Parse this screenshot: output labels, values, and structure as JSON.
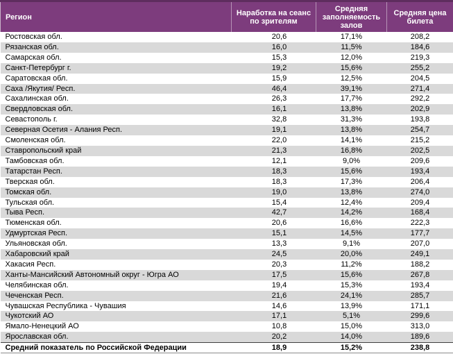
{
  "colors": {
    "header_bg": "#7d3c7d",
    "header_top_border": "#5e2d5e",
    "row_alt_bg": "#d9d9d9",
    "header_text": "#ffffff",
    "summary_border": "#404040"
  },
  "table": {
    "columns": [
      "Регион",
      "Наработка на сеанс по зрителям",
      "Средняя заполняемость залов",
      "Средняя цена билета"
    ],
    "rows": [
      [
        "Ростовская обл.",
        "20,6",
        "17,1%",
        "208,2"
      ],
      [
        "Рязанская обл.",
        "16,0",
        "11,5%",
        "184,6"
      ],
      [
        "Самарская обл.",
        "15,3",
        "12,0%",
        "219,3"
      ],
      [
        "Санкт-Петербург г.",
        "19,2",
        "15,6%",
        "255,2"
      ],
      [
        "Саратовская обл.",
        "15,9",
        "12,5%",
        "204,5"
      ],
      [
        "Саха /Якутия/ Респ.",
        "46,4",
        "39,1%",
        "271,4"
      ],
      [
        "Сахалинская обл.",
        "26,3",
        "17,7%",
        "292,2"
      ],
      [
        "Свердловская обл.",
        "16,1",
        "13,8%",
        "202,9"
      ],
      [
        "Севастополь г.",
        "32,8",
        "31,3%",
        "193,8"
      ],
      [
        "Северная Осетия - Алания Респ.",
        "19,1",
        "13,8%",
        "254,7"
      ],
      [
        "Смоленская обл.",
        "22,0",
        "14,1%",
        "215,2"
      ],
      [
        "Ставропольский край",
        "21,3",
        "16,8%",
        "202,5"
      ],
      [
        "Тамбовская обл.",
        "12,1",
        "9,0%",
        "209,6"
      ],
      [
        "Татарстан Респ.",
        "18,3",
        "15,6%",
        "193,4"
      ],
      [
        "Тверская обл.",
        "18,3",
        "17,3%",
        "206,4"
      ],
      [
        "Томская обл.",
        "19,0",
        "13,8%",
        "274,0"
      ],
      [
        "Тульская обл.",
        "15,4",
        "12,4%",
        "209,4"
      ],
      [
        "Тыва Респ.",
        "42,7",
        "14,2%",
        "168,4"
      ],
      [
        "Тюменская обл.",
        "20,6",
        "16,6%",
        "222,3"
      ],
      [
        "Удмуртская Респ.",
        "15,1",
        "14,5%",
        "177,7"
      ],
      [
        "Ульяновская обл.",
        "13,3",
        "9,1%",
        "207,0"
      ],
      [
        "Хабаровский край",
        "24,5",
        "20,0%",
        "249,1"
      ],
      [
        "Хакасия Респ.",
        "20,3",
        "11,2%",
        "188,2"
      ],
      [
        "Ханты-Мансийский Автономный округ - Югра АО",
        "17,5",
        "15,6%",
        "267,8"
      ],
      [
        "Челябинская обл.",
        "19,4",
        "15,3%",
        "193,4"
      ],
      [
        "Чеченская Респ.",
        "21,6",
        "24,1%",
        "285,7"
      ],
      [
        "Чувашская Республика - Чувашия",
        "14,6",
        "13,9%",
        "171,1"
      ],
      [
        "Чукотский АО",
        "17,1",
        "5,1%",
        "299,6"
      ],
      [
        "Ямало-Ненецкий АО",
        "10,8",
        "15,0%",
        "313,0"
      ],
      [
        "Ярославская обл.",
        "20,2",
        "14,0%",
        "189,6"
      ]
    ],
    "summary": [
      "Средний показатель по Российской Федерации",
      "18,9",
      "15,2%",
      "238,8"
    ]
  }
}
